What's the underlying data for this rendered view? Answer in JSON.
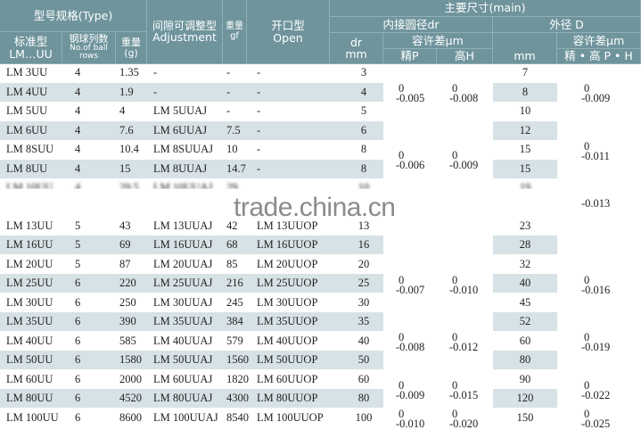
{
  "header": {
    "type": "型号规格(Type)",
    "standard_cn": "标准型",
    "standard_en": "LM…UU",
    "rows_cn": "钢球列数",
    "rows_en": "No.of ball rows",
    "weight_cn": "重量",
    "weight_unit": "(g)",
    "adjust_cn": "间隙可调整型",
    "adjust_en": "Adjustment",
    "adj_weight_cn": "重量",
    "adj_weight_unit": "gf",
    "open_cn": "开口型",
    "open_en": "Open",
    "main": "主要尺寸(main)",
    "inner": "内接圆径dr",
    "outer": "外径 D",
    "dr": "dr",
    "dr_unit": "mm",
    "tol1": "容许差μm",
    "p": "精P",
    "h": "高H",
    "d_unit": "mm",
    "tol2": "容许差μm",
    "ph": "精 • 高 P • H"
  },
  "rows": [
    {
      "std": "LM 3UU",
      "balls": "4",
      "w": "1.35",
      "adj": "-",
      "gf": "-",
      "open": "-",
      "dr": "3",
      "d": "7",
      "shade": false
    },
    {
      "std": "LM 4UU",
      "balls": "4",
      "w": "1.9",
      "adj": "-",
      "gf": "-",
      "open": "-",
      "dr": "4",
      "d": "8",
      "shade": true
    },
    {
      "std": "LM 5UU",
      "balls": "4",
      "w": "4",
      "adj": "LM 5UUAJ",
      "gf": "-",
      "open": "-",
      "dr": "5",
      "d": "10",
      "shade": false
    },
    {
      "std": "LM 6UU",
      "balls": "4",
      "w": "7.6",
      "adj": "LM 6UUAJ",
      "gf": "7.5",
      "open": "-",
      "dr": "6",
      "d": "12",
      "shade": true
    },
    {
      "std": "LM 8SUU",
      "balls": "4",
      "w": "10.4",
      "adj": "LM 8SUUAJ",
      "gf": "10",
      "open": "-",
      "dr": "8",
      "d": "15",
      "shade": false
    },
    {
      "std": "LM 8UU",
      "balls": "4",
      "w": "15",
      "adj": "LM 8UUAJ",
      "gf": "14.7",
      "open": "-",
      "dr": "8",
      "d": "15",
      "shade": true
    },
    {
      "std": "LM 10UU",
      "balls": "4",
      "w": "29.5",
      "adj": "LM 10UUAJ",
      "gf": "29",
      "open": "",
      "dr": "10",
      "d": "19",
      "shade": false,
      "obscured": true
    },
    {
      "std": "LM 13UU",
      "balls": "5",
      "w": "43",
      "adj": "LM 13UUAJ",
      "gf": "42",
      "open": "LM 13UUOP",
      "dr": "13",
      "d": "23",
      "shade": false
    },
    {
      "std": "LM 16UU",
      "balls": "5",
      "w": "69",
      "adj": "LM 16UUAJ",
      "gf": "68",
      "open": "LM 16UUOP",
      "dr": "16",
      "d": "28",
      "shade": true
    },
    {
      "std": "LM 20UU",
      "balls": "5",
      "w": "87",
      "adj": "LM 20UUAJ",
      "gf": "85",
      "open": "LM 20UUOP",
      "dr": "20",
      "d": "32",
      "shade": false
    },
    {
      "std": "LM 25UU",
      "balls": "6",
      "w": "220",
      "adj": "LM 25UUAJ",
      "gf": "216",
      "open": "LM 25UUOP",
      "dr": "25",
      "d": "40",
      "shade": true
    },
    {
      "std": "LM 30UU",
      "balls": "6",
      "w": "250",
      "adj": "LM 30UUAJ",
      "gf": "245",
      "open": "LM 30UUOP",
      "dr": "30",
      "d": "45",
      "shade": false
    },
    {
      "std": "LM 35UU",
      "balls": "6",
      "w": "390",
      "adj": "LM 35UUAJ",
      "gf": "384",
      "open": "LM 35UUOP",
      "dr": "35",
      "d": "52",
      "shade": true
    },
    {
      "std": "LM 40UU",
      "balls": "6",
      "w": "585",
      "adj": "LM 40UUAJ",
      "gf": "579",
      "open": "LM 40UUOP",
      "dr": "40",
      "d": "60",
      "shade": false
    },
    {
      "std": "LM 50UU",
      "balls": "6",
      "w": "1580",
      "adj": "LM 50UUAJ",
      "gf": "1560",
      "open": "LM 50UUOP",
      "dr": "50",
      "d": "80",
      "shade": true
    },
    {
      "std": "LM 60UU",
      "balls": "6",
      "w": "2000",
      "adj": "LM 60UUAJ",
      "gf": "1820",
      "open": "LM 60UUOP",
      "dr": "60",
      "d": "90",
      "shade": false
    },
    {
      "std": "LM 80UU",
      "balls": "6",
      "w": "4520",
      "adj": "LM 80UUAJ",
      "gf": "4300",
      "open": "LM 80UUOP",
      "dr": "80",
      "d": "120",
      "shade": true
    },
    {
      "std": "LM 100UU",
      "balls": "6",
      "w": "8600",
      "adj": "LM 100UUAJ",
      "gf": "8540",
      "open": "LM 100UUOP",
      "dr": "100",
      "d": "150",
      "shade": false
    }
  ],
  "tol_p": [
    {
      "rows": [
        0,
        2
      ],
      "upper": "0",
      "lower": "-0.005"
    },
    {
      "rows": [
        3,
        6
      ],
      "upper": "0",
      "lower": "-0.006"
    },
    {
      "rows": [
        9,
        11
      ],
      "upper": "0",
      "lower": "-0.007"
    },
    {
      "rows": [
        12,
        14
      ],
      "upper": "0",
      "lower": "-0.008"
    },
    {
      "rows": [
        15,
        16
      ],
      "upper": "0",
      "lower": "-0.009"
    },
    {
      "rows": [
        17,
        17
      ],
      "upper": "0",
      "lower": "-0.010"
    }
  ],
  "tol_h": [
    {
      "rows": [
        0,
        2
      ],
      "upper": "0",
      "lower": "-0.008"
    },
    {
      "rows": [
        3,
        6
      ],
      "upper": "0",
      "lower": "-0.009"
    },
    {
      "rows": [
        9,
        11
      ],
      "upper": "0",
      "lower": "-0.010"
    },
    {
      "rows": [
        12,
        14
      ],
      "upper": "0",
      "lower": "-0.012"
    },
    {
      "rows": [
        15,
        16
      ],
      "upper": "0",
      "lower": "-0.015"
    },
    {
      "rows": [
        17,
        17
      ],
      "upper": "0",
      "lower": "-0.020"
    }
  ],
  "tol_d": [
    {
      "rows": [
        0,
        2
      ],
      "upper": "0",
      "lower": "-0.009"
    },
    {
      "rows": [
        3,
        5
      ],
      "upper": "0",
      "lower": "-0.011"
    },
    {
      "rows": [
        6,
        7
      ],
      "upper": "",
      "lower": "-0.013"
    },
    {
      "rows": [
        9,
        11
      ],
      "upper": "0",
      "lower": "-0.016"
    },
    {
      "rows": [
        12,
        14
      ],
      "upper": "0",
      "lower": "-0.019"
    },
    {
      "rows": [
        15,
        16
      ],
      "upper": "0",
      "lower": "-0.022"
    },
    {
      "rows": [
        17,
        17
      ],
      "upper": "0",
      "lower": "-0.025"
    }
  ],
  "watermark": "trade.china.cn",
  "colors": {
    "header": "#6f949c",
    "shade": "#d7e2e6"
  }
}
